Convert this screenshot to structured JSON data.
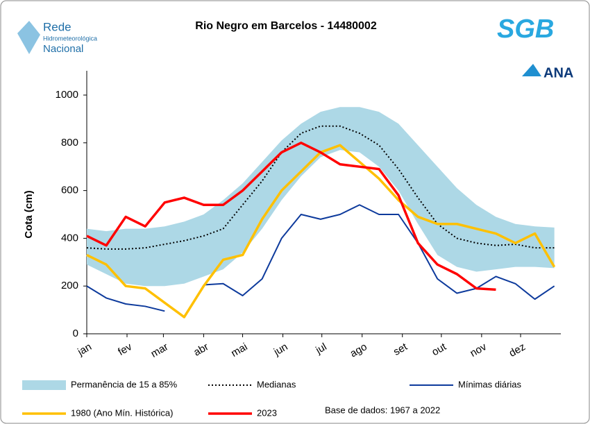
{
  "chart_data": {
    "type": "line",
    "title": "Rio Negro em Barcelos - 14480002",
    "y_label": "Cota (cm)",
    "annotation": "Base de dados: 1967 a 2022",
    "x": [
      0,
      15,
      30,
      45,
      60,
      75,
      90,
      105,
      120,
      135,
      150,
      165,
      180,
      195,
      210,
      225,
      240,
      255,
      270,
      285,
      300,
      315,
      330,
      345,
      360
    ],
    "xlim": [
      0,
      365
    ],
    "xticks": [
      {
        "value": 0,
        "label": "jan"
      },
      {
        "value": 31,
        "label": "fev"
      },
      {
        "value": 59,
        "label": "mar"
      },
      {
        "value": 90,
        "label": "abr"
      },
      {
        "value": 120,
        "label": "mai"
      },
      {
        "value": 151,
        "label": "jun"
      },
      {
        "value": 181,
        "label": "jul"
      },
      {
        "value": 212,
        "label": "ago"
      },
      {
        "value": 243,
        "label": "set"
      },
      {
        "value": 273,
        "label": "out"
      },
      {
        "value": 304,
        "label": "nov"
      },
      {
        "value": 334,
        "label": "dez"
      }
    ],
    "ylim": [
      0,
      1000
    ],
    "yticks": [
      0,
      200,
      400,
      600,
      800,
      1000
    ],
    "grid": false,
    "series": [
      {
        "name": "Permanência de 15 a 85%",
        "color": "#add8e6",
        "style": "band",
        "low": [
          290,
          250,
          210,
          200,
          200,
          210,
          240,
          270,
          340,
          440,
          560,
          660,
          740,
          770,
          760,
          700,
          600,
          460,
          330,
          280,
          260,
          270,
          280,
          280,
          275
        ],
        "high": [
          440,
          430,
          440,
          440,
          450,
          470,
          500,
          560,
          630,
          720,
          810,
          880,
          930,
          950,
          950,
          930,
          880,
          790,
          700,
          610,
          540,
          490,
          460,
          450,
          445
        ]
      },
      {
        "name": "Medianas",
        "color": "#000000",
        "style": "dotted",
        "width": 2,
        "values": [
          360,
          355,
          355,
          360,
          375,
          390,
          410,
          440,
          540,
          640,
          760,
          840,
          870,
          870,
          840,
          790,
          690,
          570,
          460,
          400,
          380,
          370,
          375,
          360,
          360
        ]
      },
      {
        "name": "Mínimas diárias",
        "color": "#0d3a9c",
        "style": "solid",
        "width": 2,
        "values": [
          200,
          150,
          125,
          115,
          95,
          null,
          205,
          210,
          160,
          230,
          400,
          500,
          480,
          500,
          540,
          500,
          500,
          380,
          230,
          170,
          190,
          240,
          210,
          145,
          200
        ]
      },
      {
        "name": "1980 (Ano Mín. Histórica)",
        "color": "#ffc000",
        "style": "solid",
        "width": 3.5,
        "values": [
          330,
          290,
          200,
          190,
          130,
          70,
          200,
          310,
          330,
          480,
          600,
          680,
          760,
          790,
          720,
          650,
          560,
          490,
          460,
          460,
          440,
          420,
          380,
          420,
          280
        ]
      },
      {
        "name": "2023",
        "color": "#ff0000",
        "style": "solid",
        "width": 3.5,
        "values": [
          410,
          370,
          490,
          450,
          550,
          570,
          540,
          540,
          600,
          680,
          760,
          800,
          760,
          710,
          700,
          690,
          580,
          380,
          290,
          250,
          190,
          185,
          null,
          null,
          null
        ]
      }
    ]
  },
  "logos": {
    "rede": [
      "Rede",
      "Hidrometeorológica",
      "Nacional"
    ],
    "sgb": "SGB",
    "ana": "ANA"
  }
}
